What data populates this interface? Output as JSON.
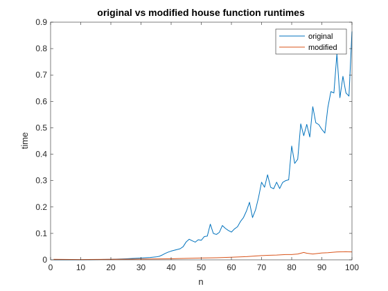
{
  "chart_data": {
    "type": "line",
    "title": "original vs modified house function runtimes",
    "xlabel": "n",
    "ylabel": "time",
    "xlim": [
      0,
      100
    ],
    "ylim": [
      0,
      0.9
    ],
    "xticks": [
      "0",
      "10",
      "20",
      "30",
      "40",
      "50",
      "60",
      "70",
      "80",
      "90",
      "100"
    ],
    "yticks": [
      "0",
      "0.1",
      "0.2",
      "0.3",
      "0.4",
      "0.5",
      "0.6",
      "0.7",
      "0.8",
      "0.9"
    ],
    "grid": false,
    "legend_position": "top-right",
    "series": [
      {
        "name": "original",
        "color": "#0072BD",
        "x": [
          1,
          5,
          10,
          15,
          20,
          25,
          30,
          33,
          35,
          36,
          37,
          38,
          39,
          40,
          41,
          42,
          43,
          44,
          45,
          46,
          47,
          48,
          49,
          50,
          51,
          52,
          53,
          54,
          55,
          56,
          57,
          58,
          59,
          60,
          61,
          62,
          63,
          64,
          65,
          66,
          67,
          68,
          69,
          70,
          71,
          72,
          73,
          74,
          75,
          76,
          77,
          78,
          79,
          80,
          81,
          82,
          83,
          84,
          85,
          86,
          87,
          88,
          89,
          90,
          91,
          92,
          93,
          94,
          95,
          96,
          97,
          98,
          99,
          100
        ],
        "values": [
          0,
          0,
          0,
          0.001,
          0.002,
          0.004,
          0.007,
          0.009,
          0.011,
          0.013,
          0.018,
          0.024,
          0.029,
          0.033,
          0.036,
          0.039,
          0.042,
          0.05,
          0.068,
          0.078,
          0.072,
          0.067,
          0.076,
          0.074,
          0.088,
          0.09,
          0.135,
          0.1,
          0.096,
          0.104,
          0.13,
          0.119,
          0.111,
          0.105,
          0.117,
          0.125,
          0.145,
          0.16,
          0.185,
          0.218,
          0.16,
          0.189,
          0.236,
          0.294,
          0.275,
          0.322,
          0.275,
          0.269,
          0.294,
          0.27,
          0.293,
          0.3,
          0.303,
          0.431,
          0.365,
          0.381,
          0.515,
          0.47,
          0.513,
          0.465,
          0.58,
          0.519,
          0.512,
          0.494,
          0.48,
          0.577,
          0.637,
          0.632,
          0.78,
          0.614,
          0.695,
          0.632,
          0.62,
          0.865
        ]
      },
      {
        "name": "modified",
        "color": "#D95319",
        "x": [
          1,
          10,
          20,
          30,
          40,
          50,
          55,
          60,
          65,
          70,
          72,
          75,
          78,
          80,
          82,
          84,
          85,
          87,
          90,
          92,
          95,
          98,
          100
        ],
        "values": [
          0.002,
          0.001,
          0.002,
          0.003,
          0.004,
          0.007,
          0.008,
          0.01,
          0.012,
          0.016,
          0.017,
          0.018,
          0.02,
          0.02,
          0.022,
          0.028,
          0.025,
          0.022,
          0.026,
          0.027,
          0.03,
          0.031,
          0.03
        ]
      }
    ]
  }
}
